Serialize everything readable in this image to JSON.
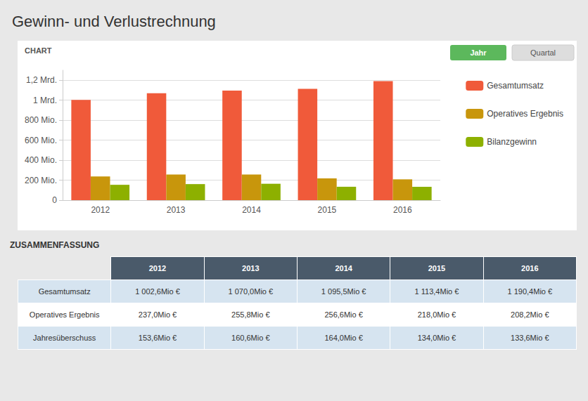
{
  "chart_data": {
    "type": "bar",
    "title": "Gewinn- und Verlustrechnung",
    "categories": [
      "2012",
      "2013",
      "2014",
      "2015",
      "2016"
    ],
    "series": [
      {
        "name": "Gesamtumsatz",
        "color": "#F05A3A",
        "values": [
          1002.6,
          1070.0,
          1095.5,
          1113.4,
          1190.4
        ]
      },
      {
        "name": "Operatives Ergebnis",
        "color": "#C8960C",
        "values": [
          237.0,
          255.8,
          256.6,
          218.0,
          208.2
        ]
      },
      {
        "name": "Bilanzgewinn",
        "color": "#8DB000",
        "values": [
          153.6,
          160.6,
          164.0,
          134.0,
          133.6
        ]
      }
    ],
    "ylim": [
      0,
      1300
    ],
    "yticks": [
      0,
      {
        "value": 200,
        "label": "200 Mio."
      },
      {
        "value": 400,
        "label": "400 Mio."
      },
      {
        "value": 600,
        "label": "600 Mio."
      },
      {
        "value": 800,
        "label": "800 Mio."
      },
      {
        "value": 1000,
        "label": "1 Mrd."
      },
      {
        "value": 1200,
        "label": "1,2 Mrd."
      }
    ],
    "grid": true,
    "legend": "right",
    "annotations": [
      "CHART",
      "Jahr",
      "Quartal",
      "ZUSAMMENFASSUNG"
    ],
    "table": {
      "header": [
        "2012",
        "2013",
        "2014",
        "2015",
        "2016"
      ],
      "rows": [
        {
          "label": "Gesamtumsatz",
          "values": [
            "1 002,6Mio €",
            "1 070,0Mio €",
            "1 095,5Mio €",
            "1 113,4Mio €",
            "1 190,4Mio €"
          ]
        },
        {
          "label": "Operatives Ergebnis",
          "values": [
            "237,0Mio €",
            "255,8Mio €",
            "256,6Mio €",
            "218,0Mio €",
            "208,2Mio €"
          ]
        },
        {
          "label": "Jahresüberschuss",
          "values": [
            "153,6Mio €",
            "160,6Mio €",
            "164,0Mio €",
            "134,0Mio €",
            "133,6Mio €"
          ]
        }
      ]
    }
  }
}
